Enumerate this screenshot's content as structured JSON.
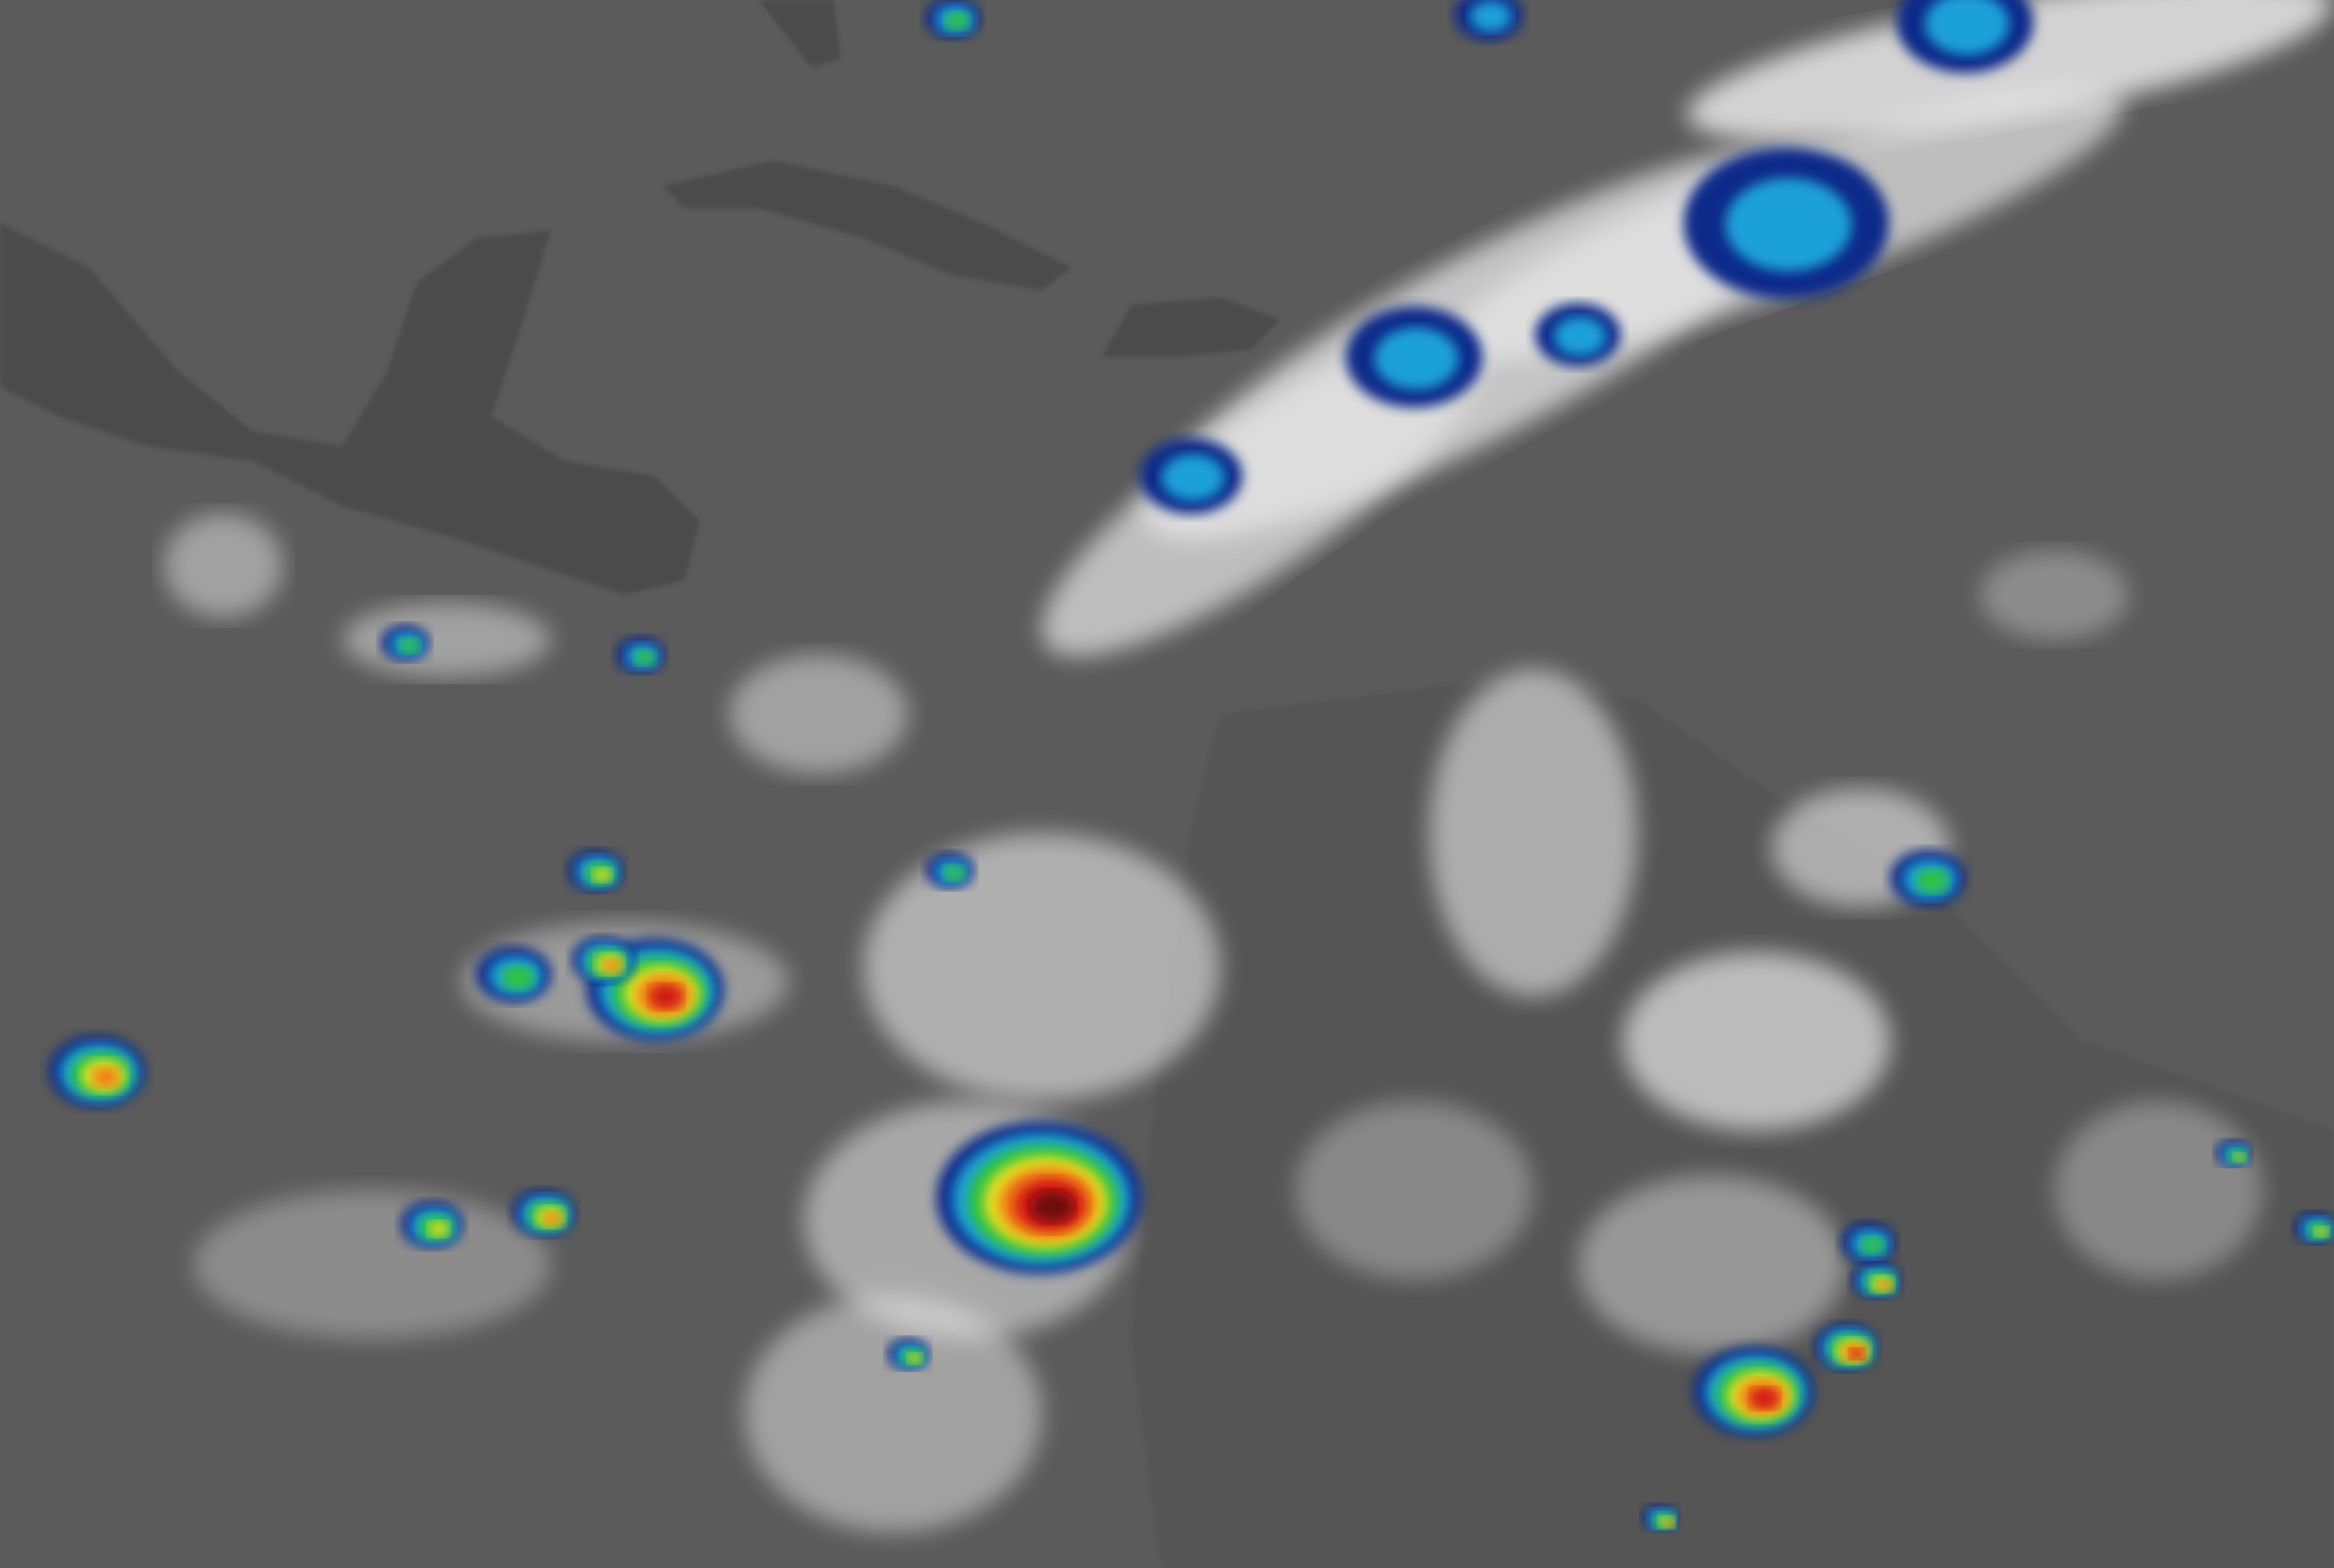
{
  "colors": {
    "background": "#5b5b5b",
    "land": "#4a4a4a",
    "cloud": "#e8e8e8",
    "cold_cloud_scale": [
      "#0a2a8a",
      "#1aa0d8",
      "#2ec43c",
      "#e8e020",
      "#f07818",
      "#d01818",
      "#701010"
    ]
  }
}
